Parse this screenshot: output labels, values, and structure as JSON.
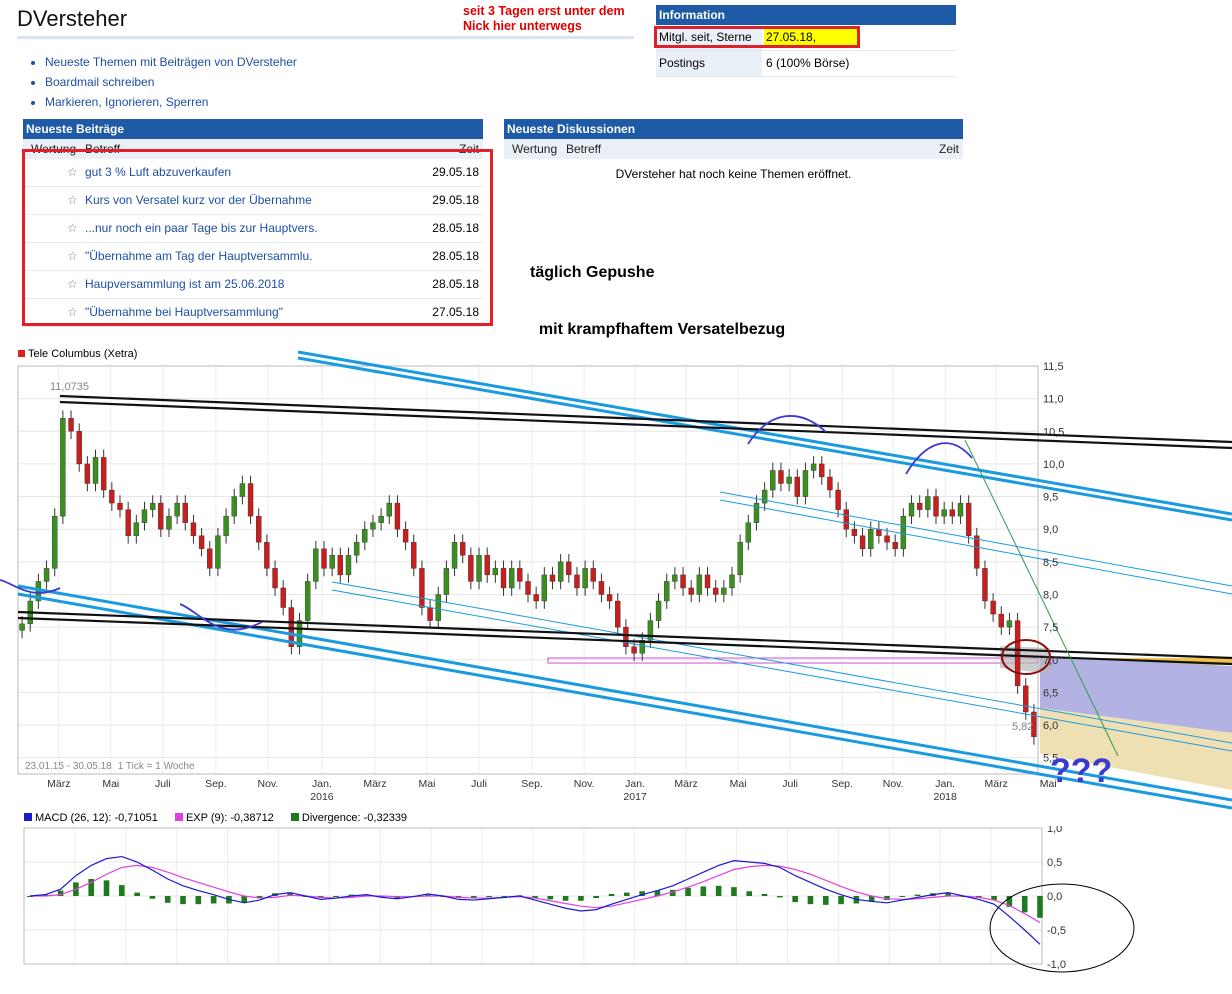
{
  "profile": {
    "username": "DVersteher",
    "links": [
      "Neueste Themen mit Beiträgen von DVersteher",
      "Boardmail schreiben",
      "Markieren, Ignorieren, Sperren"
    ]
  },
  "annotations": {
    "top": [
      "seit  3 Tagen erst unter dem",
      "Nick hier unterwegs"
    ],
    "middle": [
      "täglich Gepushe",
      "  mit krampfhaftem Versatelbezug"
    ],
    "question": "???"
  },
  "info": {
    "header": "Information",
    "rows": [
      {
        "label": "Mitgl. seit, Sterne",
        "value": "27.05.18,"
      },
      {
        "label": "Postings",
        "value": "6 (100% Börse)"
      }
    ]
  },
  "posts": {
    "header": "Neueste Beiträge",
    "col_rating": "Wertung",
    "col_subject": "Betreff",
    "col_time": "Zeit",
    "items": [
      {
        "subject": "gut 3 % Luft abzuverkaufen",
        "date": "29.05.18"
      },
      {
        "subject": "Kurs von Versatel kurz vor der Übernahme",
        "date": "29.05.18"
      },
      {
        "subject": "...nur noch ein paar Tage bis zur Hauptvers.",
        "date": "28.05.18"
      },
      {
        "subject": "\"Übernahme am Tag der Hauptversammlu.",
        "date": "28.05.18"
      },
      {
        "subject": "Haupversammlung ist am 25.06.2018",
        "date": "28.05.18"
      },
      {
        "subject": "\"Übernahme bei Hauptversammlung\"",
        "date": "27.05.18"
      }
    ]
  },
  "discussions": {
    "header": "Neueste Diskussionen",
    "col_rating": "Wertung",
    "col_subject": "Betreff",
    "col_time": "Zeit",
    "empty": "DVersteher hat noch keine Themen eröffnet."
  },
  "chart_data": [
    {
      "type": "candlestick",
      "legend": "Tele Columbus (Xetra)",
      "y_ticks": [
        "11,5",
        "11,0",
        "10,5",
        "10,0",
        "9,5",
        "9,0",
        "8,5",
        "8,0",
        "7,5",
        "7,0",
        "6,5",
        "6,0",
        "5,5"
      ],
      "ylim": [
        5.25,
        11.5
      ],
      "x_ticks": [
        {
          "label": "März",
          "pos": 0.04
        },
        {
          "label": "Mai",
          "pos": 0.091
        },
        {
          "label": "Juli",
          "pos": 0.142
        },
        {
          "label": "Sep.",
          "pos": 0.194
        },
        {
          "label": "Nov.",
          "pos": 0.245
        },
        {
          "label": "Jan.",
          "pos": 0.298,
          "year": "2016"
        },
        {
          "label": "März",
          "pos": 0.35
        },
        {
          "label": "Mai",
          "pos": 0.401
        },
        {
          "label": "Juli",
          "pos": 0.452
        },
        {
          "label": "Sep.",
          "pos": 0.504
        },
        {
          "label": "Nov.",
          "pos": 0.555
        },
        {
          "label": "Jan.",
          "pos": 0.605,
          "year": "2017"
        },
        {
          "label": "März",
          "pos": 0.655
        },
        {
          "label": "Mai",
          "pos": 0.706
        },
        {
          "label": "Juli",
          "pos": 0.757
        },
        {
          "label": "Sep.",
          "pos": 0.808
        },
        {
          "label": "Nov.",
          "pos": 0.858
        },
        {
          "label": "Jan.",
          "pos": 0.909,
          "year": "2018"
        },
        {
          "label": "März",
          "pos": 0.959
        },
        {
          "label": "Mai",
          "pos": 1.01
        }
      ],
      "max_label": "11,0735",
      "last_label": "5,82",
      "range_label": "23.01.15 - 30.05.18",
      "tick_label": "1 Tick = 1 Woche",
      "close_path": [
        7.55,
        7.9,
        8.2,
        8.4,
        9.2,
        10.7,
        10.5,
        10.0,
        9.7,
        10.1,
        9.6,
        9.4,
        9.3,
        8.9,
        9.1,
        9.3,
        9.4,
        9.0,
        9.2,
        9.4,
        9.1,
        8.9,
        8.7,
        8.4,
        8.9,
        9.2,
        9.5,
        9.7,
        9.2,
        8.8,
        8.4,
        8.1,
        7.8,
        7.2,
        7.6,
        8.2,
        8.7,
        8.4,
        8.6,
        8.3,
        8.6,
        8.8,
        9.0,
        9.1,
        9.2,
        9.4,
        9.0,
        8.8,
        8.4,
        7.8,
        7.6,
        8.0,
        8.4,
        8.8,
        8.6,
        8.2,
        8.6,
        8.3,
        8.4,
        8.1,
        8.4,
        8.2,
        8.0,
        7.9,
        8.3,
        8.2,
        8.5,
        8.3,
        8.1,
        8.4,
        8.2,
        8.0,
        7.9,
        7.5,
        7.2,
        7.1,
        7.3,
        7.6,
        7.9,
        8.2,
        8.3,
        8.1,
        8.0,
        8.3,
        8.1,
        8.0,
        8.1,
        8.3,
        8.8,
        9.1,
        9.4,
        9.6,
        9.9,
        9.7,
        9.8,
        9.5,
        9.9,
        10.0,
        9.8,
        9.6,
        9.3,
        9.0,
        8.9,
        8.7,
        9.0,
        8.9,
        8.8,
        8.7,
        9.2,
        9.4,
        9.3,
        9.5,
        9.2,
        9.3,
        9.2,
        9.4,
        8.9,
        8.4,
        7.9,
        7.7,
        7.5,
        7.6,
        6.6,
        6.2,
        5.82
      ],
      "resistance_price": 6.95
    },
    {
      "type": "macd",
      "legend": [
        {
          "name": "MACD (26, 12): -0,71051",
          "color": "#1a1ad0"
        },
        {
          "name": "EXP (9): -0,38712",
          "color": "#e040e0"
        },
        {
          "name": "Divergence: -0,32339",
          "color": "#1d7a1d"
        }
      ],
      "y_ticks": [
        "1,0",
        "0,5",
        "0,0",
        "-0,5",
        "-1,0"
      ],
      "ylim": [
        -1.0,
        1.0
      ],
      "macd": [
        0.0,
        0.02,
        0.1,
        0.3,
        0.45,
        0.55,
        0.58,
        0.5,
        0.38,
        0.25,
        0.15,
        0.08,
        0.02,
        -0.05,
        -0.1,
        -0.06,
        0.02,
        0.05,
        0.0,
        -0.05,
        -0.03,
        0.0,
        0.02,
        -0.02,
        -0.04,
        -0.01,
        0.03,
        0.0,
        -0.05,
        -0.06,
        -0.04,
        -0.02,
        0.0,
        -0.06,
        -0.12,
        -0.18,
        -0.22,
        -0.2,
        -0.12,
        -0.05,
        0.02,
        0.08,
        0.15,
        0.25,
        0.35,
        0.45,
        0.52,
        0.5,
        0.48,
        0.42,
        0.3,
        0.2,
        0.1,
        0.02,
        -0.05,
        -0.08,
        -0.1,
        -0.06,
        -0.02,
        0.02,
        0.05,
        0.0,
        -0.05,
        -0.12,
        -0.3,
        -0.5,
        -0.71
      ],
      "signal": [
        0.0,
        0.0,
        0.02,
        0.1,
        0.2,
        0.32,
        0.42,
        0.45,
        0.42,
        0.35,
        0.27,
        0.2,
        0.13,
        0.06,
        0.0,
        -0.03,
        -0.02,
        0.01,
        0.0,
        -0.02,
        -0.03,
        -0.02,
        0.0,
        0.0,
        -0.01,
        -0.01,
        0.0,
        0.0,
        -0.02,
        -0.03,
        -0.03,
        -0.02,
        -0.01,
        -0.03,
        -0.07,
        -0.11,
        -0.15,
        -0.17,
        -0.15,
        -0.1,
        -0.05,
        0.0,
        0.06,
        0.13,
        0.21,
        0.3,
        0.39,
        0.43,
        0.45,
        0.44,
        0.39,
        0.32,
        0.23,
        0.14,
        0.06,
        0.0,
        -0.04,
        -0.05,
        -0.04,
        -0.02,
        0.0,
        0.0,
        -0.02,
        -0.06,
        -0.14,
        -0.26,
        -0.39
      ]
    }
  ]
}
